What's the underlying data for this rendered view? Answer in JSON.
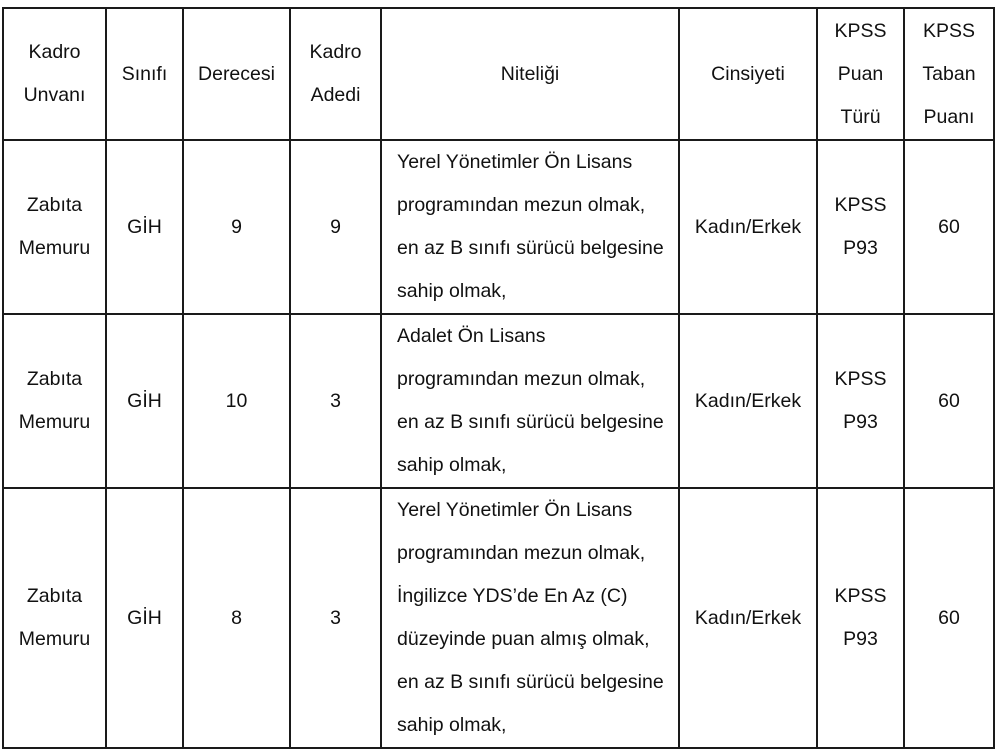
{
  "headers": [
    [
      "Kadro",
      "Unvanı"
    ],
    [
      "Sınıfı"
    ],
    [
      "Derecesi"
    ],
    [
      "Kadro",
      "Adedi"
    ],
    [
      "Niteliği"
    ],
    [
      "Cinsiyeti"
    ],
    [
      "KPSS",
      "Puan",
      "Türü"
    ],
    [
      "KPSS",
      "Taban",
      "Puanı"
    ]
  ],
  "rows": [
    {
      "unvan": [
        "Zabıta",
        "Memuru"
      ],
      "sinif": "GİH",
      "derece": "9",
      "adet": "9",
      "nitelik": [
        "Yerel Yönetimler Ön Lisans",
        "programından mezun olmak,",
        "en az B sınıfı sürücü belgesine",
        "sahip olmak,"
      ],
      "cinsiyet": "Kadın/Erkek",
      "puan_turu": [
        "KPSS",
        "P93"
      ],
      "taban": "60"
    },
    {
      "unvan": [
        "Zabıta",
        "Memuru"
      ],
      "sinif": "GİH",
      "derece": "10",
      "adet": "3",
      "nitelik": [
        "Adalet Ön Lisans",
        "programından mezun olmak,",
        "en az B sınıfı sürücü belgesine",
        "sahip olmak,"
      ],
      "cinsiyet": "Kadın/Erkek",
      "puan_turu": [
        "KPSS",
        "P93"
      ],
      "taban": "60"
    },
    {
      "unvan": [
        "Zabıta",
        "Memuru"
      ],
      "sinif": "GİH",
      "derece": "8",
      "adet": "3",
      "nitelik": [
        "Yerel Yönetimler Ön Lisans",
        "programından mezun olmak,",
        "İngilizce YDS’de En Az (C)",
        "düzeyinde puan almış olmak,",
        "en az B sınıfı sürücü belgesine",
        "sahip olmak,"
      ],
      "cinsiyet": "Kadın/Erkek",
      "puan_turu": [
        "KPSS",
        "P93"
      ],
      "taban": "60"
    }
  ]
}
